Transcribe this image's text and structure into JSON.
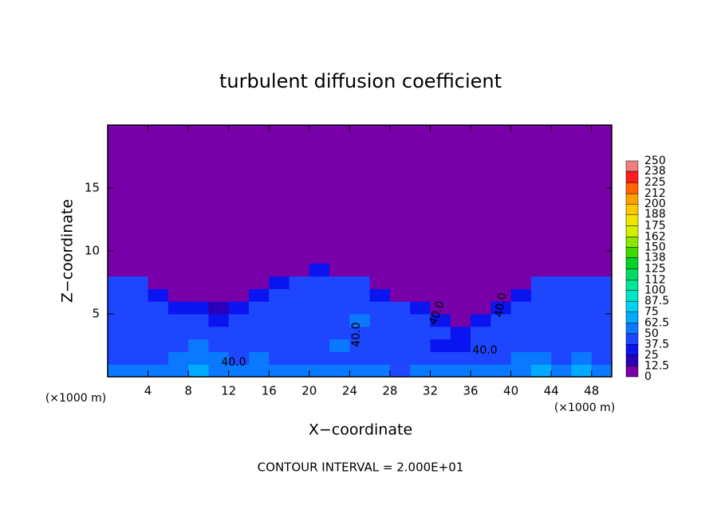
{
  "chart_data": {
    "type": "heatmap",
    "title": "turbulent diffusion coefficient",
    "x_label": "X−coordinate",
    "y_label": "Z−coordinate",
    "x_unit_label": "(×1000 m)",
    "y_unit_label": "(×1000 m)",
    "footer": "CONTOUR INTERVAL = 2.000E+01",
    "xlim": [
      0,
      50
    ],
    "xticks": [
      4,
      8,
      12,
      16,
      20,
      24,
      28,
      32,
      36,
      40,
      44,
      48
    ],
    "ylim": [
      0,
      20
    ],
    "yticks": [
      5,
      10,
      15
    ],
    "x": [
      1,
      3,
      5,
      7,
      9,
      11,
      13,
      15,
      17,
      19,
      21,
      23,
      25,
      27,
      29,
      31,
      33,
      35,
      37,
      39,
      41,
      43,
      45,
      47,
      49
    ],
    "z": [
      0.5,
      1.5,
      2.5,
      3.5,
      4.5,
      5.5,
      6.5,
      7.5,
      8.5
    ],
    "values": [
      [
        50,
        55,
        50,
        62,
        70,
        60,
        55,
        55,
        50,
        55,
        55,
        60,
        50,
        55,
        45,
        50,
        55,
        50,
        55,
        55,
        60,
        65,
        60,
        65,
        55
      ],
      [
        40,
        45,
        45,
        50,
        50,
        55,
        45,
        50,
        45,
        45,
        40,
        45,
        40,
        45,
        40,
        40,
        45,
        40,
        45,
        45,
        50,
        50,
        45,
        50,
        45
      ],
      [
        45,
        40,
        40,
        45,
        50,
        45,
        40,
        45,
        40,
        45,
        45,
        50,
        40,
        45,
        40,
        40,
        35,
        35,
        40,
        45,
        45,
        40,
        40,
        45,
        40
      ],
      [
        45,
        45,
        40,
        40,
        45,
        40,
        40,
        45,
        45,
        40,
        45,
        45,
        45,
        40,
        45,
        40,
        40,
        35,
        40,
        40,
        45,
        45,
        40,
        40,
        45
      ],
      [
        45,
        40,
        45,
        40,
        40,
        35,
        40,
        45,
        45,
        40,
        45,
        40,
        50,
        45,
        45,
        40,
        35,
        0,
        35,
        40,
        45,
        40,
        45,
        40,
        45
      ],
      [
        45,
        45,
        40,
        35,
        25,
        20,
        35,
        40,
        45,
        45,
        45,
        40,
        45,
        40,
        40,
        25,
        0,
        0,
        0,
        35,
        40,
        45,
        40,
        45,
        40
      ],
      [
        45,
        40,
        35,
        0,
        0,
        0,
        0,
        35,
        40,
        45,
        40,
        45,
        40,
        35,
        0,
        0,
        0,
        0,
        0,
        0,
        35,
        45,
        40,
        45,
        45
      ],
      [
        40,
        40,
        0,
        0,
        0,
        0,
        0,
        0,
        35,
        40,
        40,
        40,
        40,
        0,
        0,
        0,
        0,
        0,
        0,
        0,
        0,
        40,
        40,
        40,
        40
      ],
      [
        0,
        0,
        0,
        0,
        0,
        0,
        0,
        0,
        0,
        0,
        30,
        0,
        0,
        0,
        0,
        0,
        0,
        0,
        0,
        0,
        0,
        0,
        0,
        0,
        0
      ]
    ],
    "colorbar_ticks": [
      0,
      12.5,
      25,
      37.5,
      50,
      62.5,
      75,
      87.5,
      100,
      112,
      125,
      138,
      150,
      162,
      175,
      188,
      200,
      212,
      225,
      238,
      250
    ],
    "colorbar_colors": [
      "#7800a8",
      "#2a00b8",
      "#0a14f0",
      "#1e46ff",
      "#0a78ff",
      "#00aaff",
      "#00d2f0",
      "#00e6c8",
      "#00e69a",
      "#00dc64",
      "#00d228",
      "#3cdc00",
      "#8ce600",
      "#d2f000",
      "#f0e600",
      "#ffc800",
      "#ffa000",
      "#ff6400",
      "#ff1e1e",
      "#f08080"
    ],
    "contour_labels": [
      "40.0",
      "40.0",
      "40.0",
      "40.0",
      "40.0"
    ]
  }
}
